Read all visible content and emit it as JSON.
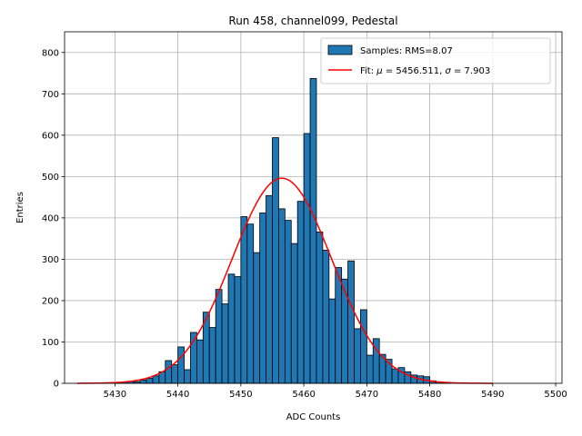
{
  "chart_data": {
    "type": "bar",
    "title": "Run 458, channel099, Pedestal",
    "xlabel": "ADC Counts",
    "ylabel": "Entries",
    "xlim": [
      5422,
      5501
    ],
    "ylim": [
      0,
      850
    ],
    "xticks": [
      5430,
      5440,
      5450,
      5460,
      5470,
      5480,
      5490,
      5500
    ],
    "yticks": [
      0,
      100,
      200,
      300,
      400,
      500,
      600,
      700,
      800
    ],
    "grid": true,
    "legend_position": "top-right",
    "histogram": {
      "name": "Samples: RMS=8.07",
      "color": "#1f77b4",
      "edgecolor": "#000000",
      "bin_width": 1,
      "bins": [
        [
          5430,
          2
        ],
        [
          5431,
          3
        ],
        [
          5432,
          5
        ],
        [
          5433,
          4
        ],
        [
          5434,
          8
        ],
        [
          5435,
          12
        ],
        [
          5436,
          18
        ],
        [
          5437,
          28
        ],
        [
          5438,
          55
        ],
        [
          5439,
          45
        ],
        [
          5440,
          88
        ],
        [
          5441,
          33
        ],
        [
          5442,
          123
        ],
        [
          5443,
          105
        ],
        [
          5444,
          172
        ],
        [
          5445,
          135
        ],
        [
          5446,
          227
        ],
        [
          5447,
          192
        ],
        [
          5448,
          264
        ],
        [
          5449,
          258
        ],
        [
          5450,
          403
        ],
        [
          5451,
          385
        ],
        [
          5452,
          316
        ],
        [
          5453,
          412
        ],
        [
          5454,
          454
        ],
        [
          5455,
          594
        ],
        [
          5456,
          422
        ],
        [
          5457,
          394
        ],
        [
          5458,
          338
        ],
        [
          5459,
          440
        ],
        [
          5460,
          604
        ],
        [
          5461,
          737
        ],
        [
          5462,
          366
        ],
        [
          5463,
          322
        ],
        [
          5464,
          204
        ],
        [
          5465,
          280
        ],
        [
          5466,
          252
        ],
        [
          5467,
          296
        ],
        [
          5468,
          132
        ],
        [
          5469,
          178
        ],
        [
          5470,
          68
        ],
        [
          5471,
          108
        ],
        [
          5472,
          70
        ],
        [
          5473,
          58
        ],
        [
          5474,
          35
        ],
        [
          5475,
          38
        ],
        [
          5476,
          28
        ],
        [
          5477,
          20
        ],
        [
          5478,
          18
        ],
        [
          5479,
          16
        ],
        [
          5480,
          6
        ],
        [
          5481,
          3
        ],
        [
          5482,
          2
        ]
      ]
    },
    "fit": {
      "name": "Fit: μ = 5456.511, σ = 7.903",
      "label_prefix": "Fit: ",
      "mu_symbol": "μ",
      "sigma_symbol": "σ",
      "mu_text": " = 5456.511, ",
      "sigma_text": " = 7.903",
      "color": "#ff0000",
      "mu": 5456.511,
      "sigma": 7.903,
      "amplitude": 496,
      "x_range": [
        5424,
        5490
      ]
    }
  }
}
